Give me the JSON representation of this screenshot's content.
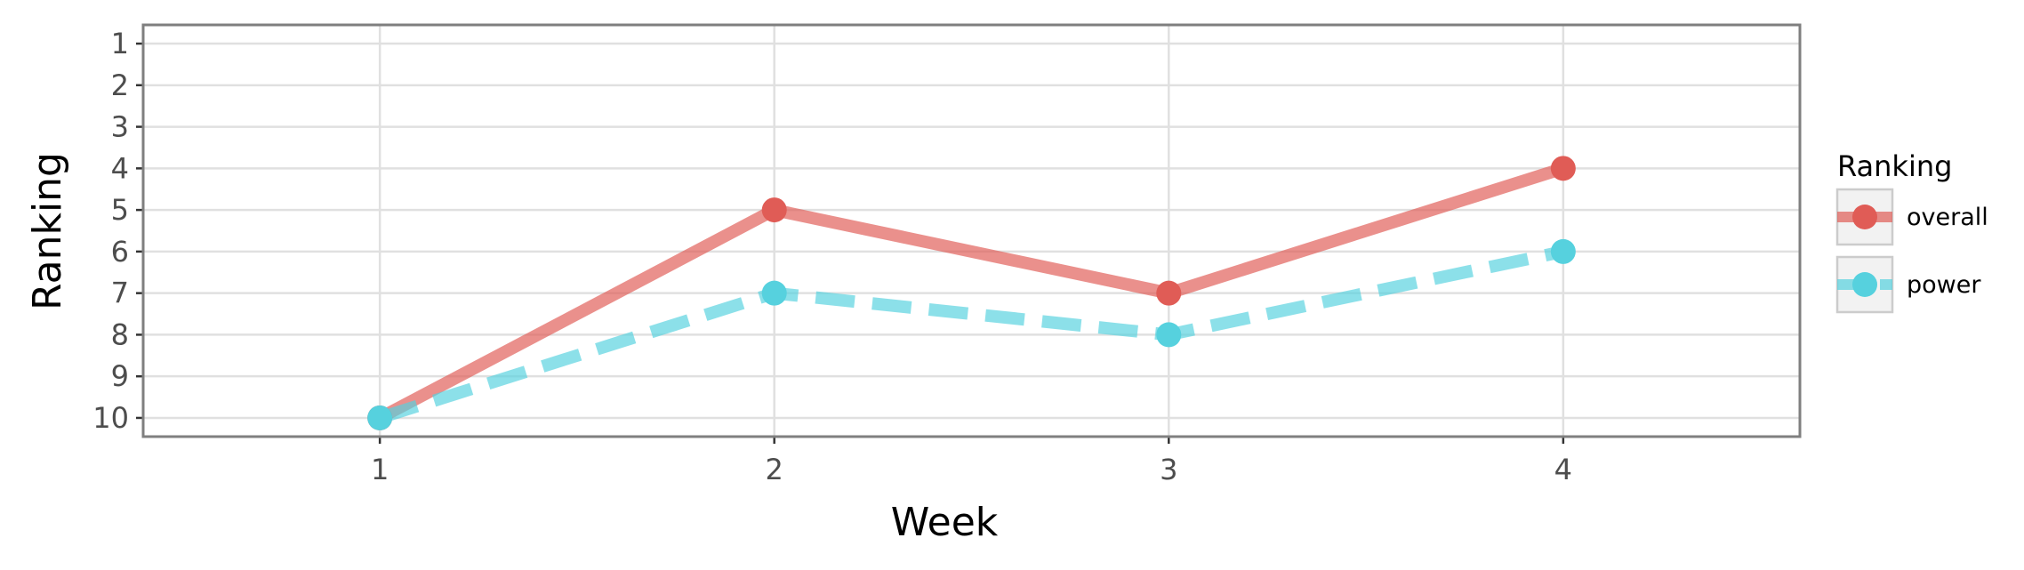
{
  "chart_data": {
    "type": "line",
    "xlabel": "Week",
    "ylabel": "Ranking",
    "x": [
      1,
      2,
      3,
      4
    ],
    "xlim": [
      0.4,
      4.6
    ],
    "ylim": [
      10.45,
      0.55
    ],
    "y_reversed": true,
    "x_ticks": [
      "1",
      "2",
      "3",
      "4"
    ],
    "y_ticks": [
      "1",
      "2",
      "3",
      "4",
      "5",
      "6",
      "7",
      "8",
      "9",
      "10"
    ],
    "grid": true,
    "legend": {
      "title": "Ranking",
      "placement": "right"
    },
    "series": [
      {
        "name": "overall",
        "values": [
          10,
          5,
          7,
          4
        ],
        "color": "#e05c56",
        "line_style": "solid"
      },
      {
        "name": "power",
        "values": [
          10,
          7,
          8,
          6
        ],
        "color": "#56d1de",
        "line_style": "dashed"
      }
    ]
  }
}
